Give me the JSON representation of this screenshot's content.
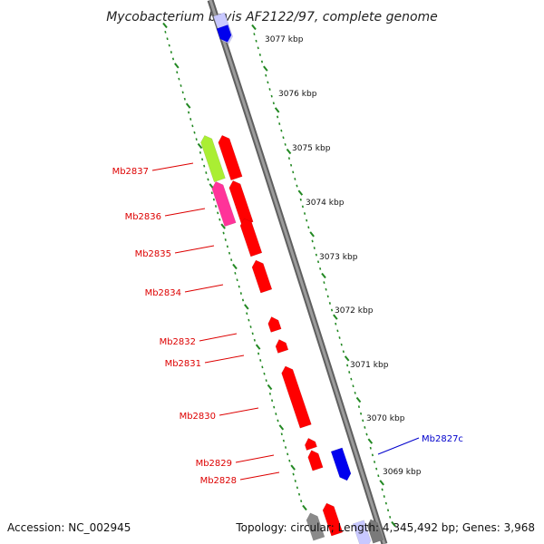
{
  "title": "Mycobacterium bovis AF2122/97, complete genome",
  "footer": {
    "accession": "Accession: NC_002945",
    "topology": "Topology: circular; Length: 4,345,492 bp; Genes: 3,968"
  },
  "colors": {
    "forward_gene": "#ff0000",
    "reverse_gene": "#0000ee",
    "gene_yellow_green": "#aaee33",
    "gene_magenta": "#ff3399",
    "tick_green": "#228822",
    "backbone": "#888888",
    "forward_label": "#dd0000",
    "reverse_label": "#0000cc"
  },
  "kbp_ticks": [
    {
      "label": "3077 kbp"
    },
    {
      "label": "3076 kbp"
    },
    {
      "label": "3075 kbp"
    },
    {
      "label": "3074 kbp"
    },
    {
      "label": "3073 kbp"
    },
    {
      "label": "3072 kbp"
    },
    {
      "label": "3071 kbp"
    },
    {
      "label": "3070 kbp"
    },
    {
      "label": "3069 kbp"
    }
  ],
  "gene_labels": [
    {
      "name": "Mb2837",
      "strand": "forward"
    },
    {
      "name": "Mb2836",
      "strand": "forward"
    },
    {
      "name": "Mb2835",
      "strand": "forward"
    },
    {
      "name": "Mb2834",
      "strand": "forward"
    },
    {
      "name": "Mb2832",
      "strand": "forward"
    },
    {
      "name": "Mb2831",
      "strand": "forward"
    },
    {
      "name": "Mb2830",
      "strand": "forward"
    },
    {
      "name": "Mb2829",
      "strand": "forward"
    },
    {
      "name": "Mb2828",
      "strand": "forward"
    },
    {
      "name": "Mb2827c",
      "strand": "reverse"
    }
  ]
}
